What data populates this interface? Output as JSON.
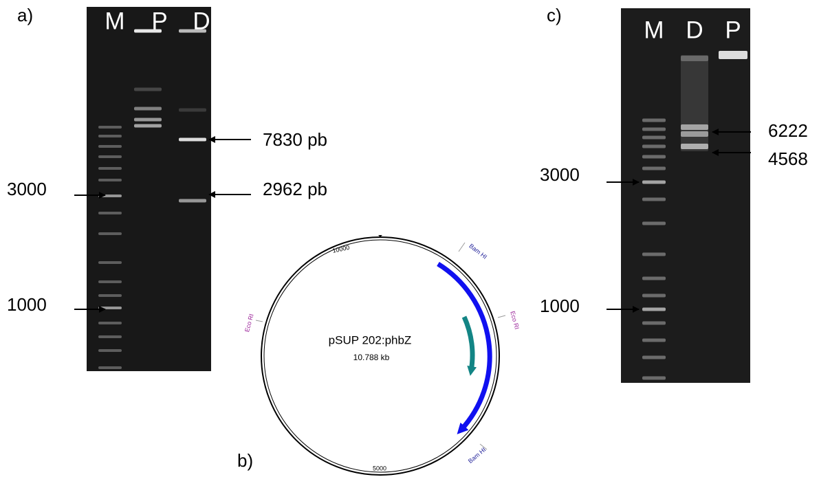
{
  "panels": [
    {
      "label": "a)",
      "lanes": [
        "M",
        "P",
        "D"
      ],
      "band_labels": [
        "7830 pb",
        "2962 pb"
      ],
      "marker_labels": [
        "3000",
        "1000"
      ]
    },
    {
      "label": "b)",
      "plasmid": {
        "name": "pSUP 202:phbZ",
        "size": "10.788 kb",
        "scale_labels": [
          "10000",
          "5000"
        ],
        "sites": [
          "Bam HI",
          "Eco RI",
          "Eco RI",
          "Bam HI"
        ]
      }
    },
    {
      "label": "c)",
      "lanes": [
        "M",
        "D",
        "P"
      ],
      "band_labels": [
        "6222",
        "4568"
      ],
      "marker_labels": [
        "3000",
        "1000"
      ]
    }
  ]
}
